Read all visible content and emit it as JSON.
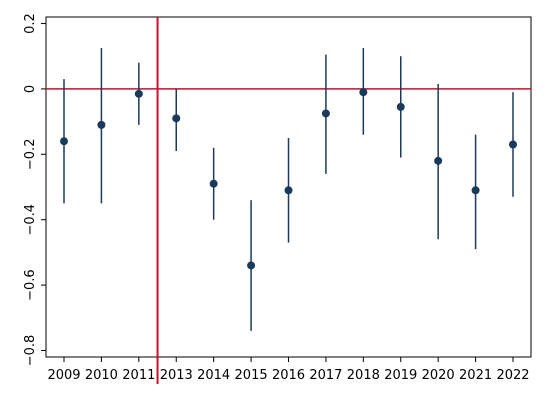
{
  "chart_data": {
    "type": "scatter",
    "subtype": "coefficient plot with confidence intervals",
    "title": "",
    "xlabel": "",
    "ylabel": "",
    "categories": [
      "2009",
      "2010",
      "2011",
      "2013",
      "2014",
      "2015",
      "2016",
      "2017",
      "2018",
      "2019",
      "2020",
      "2021",
      "2022"
    ],
    "series": [
      {
        "values": [
          -0.16,
          -0.11,
          -0.015,
          -0.09,
          -0.29,
          -0.54,
          -0.31,
          -0.075,
          -0.01,
          -0.055,
          -0.22,
          -0.31,
          -0.17
        ],
        "ci_lower": [
          -0.35,
          -0.35,
          -0.11,
          -0.19,
          -0.4,
          -0.74,
          -0.47,
          -0.26,
          -0.14,
          -0.21,
          -0.46,
          -0.49,
          -0.33
        ],
        "ci_upper": [
          0.03,
          0.125,
          0.08,
          0.0,
          -0.18,
          -0.34,
          -0.15,
          0.105,
          0.125,
          0.1,
          0.015,
          -0.14,
          -0.01
        ]
      }
    ],
    "y_ticks": [
      0.2,
      0,
      -0.2,
      -0.4,
      -0.6,
      -0.8
    ],
    "y_tick_labels": [
      "0.2",
      "0",
      "−0.2",
      "−0.4",
      "−0.6",
      "−0.8"
    ],
    "ylim": [
      -0.82,
      0.22
    ],
    "reference_lines": {
      "horizontal_y": 0,
      "vertical_between": [
        "2011",
        "2013"
      ]
    },
    "grid": false,
    "legend": "none",
    "colors": {
      "marker": "#1a3a5c",
      "ci_line": "#1a3a5c",
      "reference": "#c8102e",
      "frame": "#000000",
      "background": "#ffffff"
    }
  }
}
